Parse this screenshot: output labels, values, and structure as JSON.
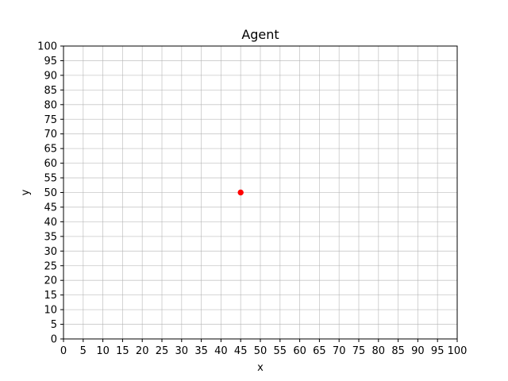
{
  "chart_data": {
    "type": "scatter",
    "title": "Agent",
    "xlabel": "x",
    "ylabel": "y",
    "xlim": [
      0,
      100
    ],
    "ylim": [
      0,
      100
    ],
    "xticks": [
      0,
      5,
      10,
      15,
      20,
      25,
      30,
      35,
      40,
      45,
      50,
      55,
      60,
      65,
      70,
      75,
      80,
      85,
      90,
      95,
      100
    ],
    "yticks": [
      0,
      5,
      10,
      15,
      20,
      25,
      30,
      35,
      40,
      45,
      50,
      55,
      60,
      65,
      70,
      75,
      80,
      85,
      90,
      95,
      100
    ],
    "grid": true,
    "points": [
      {
        "x": 45,
        "y": 50,
        "color": "#ff0000"
      }
    ]
  }
}
